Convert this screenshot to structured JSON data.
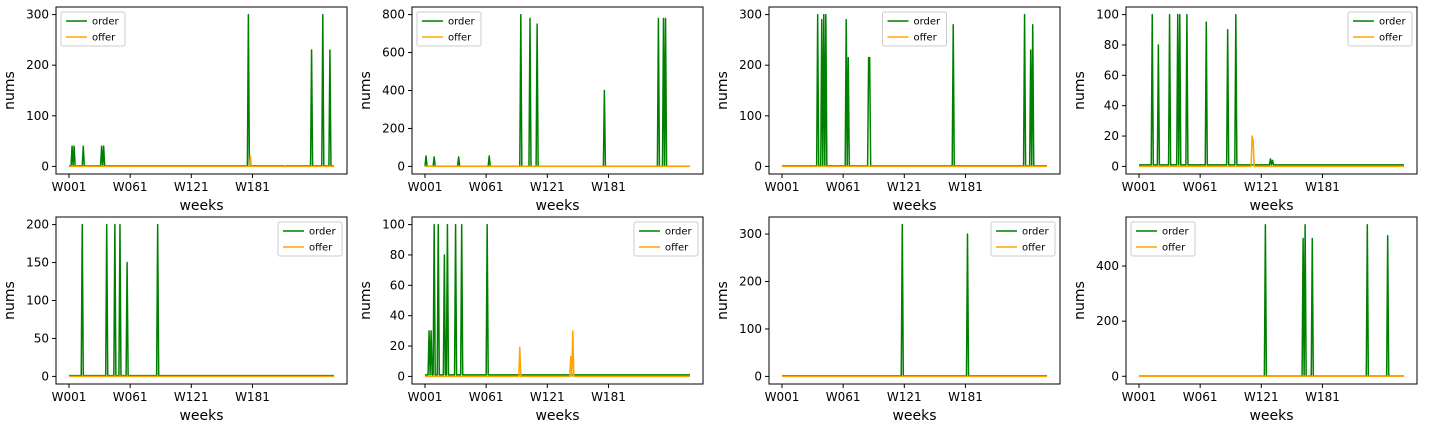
{
  "colors": {
    "order": "#008000",
    "offer": "#FFA500"
  },
  "chart_data": [
    {
      "type": "line",
      "title": "",
      "xlabel": "weeks",
      "ylabel": "nums",
      "x_ticks": [
        "W001",
        "W061",
        "W121",
        "W181"
      ],
      "y_ticks": [
        0,
        100,
        200,
        300
      ],
      "ylim": [
        -15,
        315
      ],
      "legend": "top-left",
      "grid": false,
      "series": [
        {
          "name": "order",
          "color": "#008000",
          "baseline": 1,
          "spikes": [
            [
              3,
              40
            ],
            [
              5,
              40
            ],
            [
              14,
              40
            ],
            [
              32,
              40
            ],
            [
              34,
              40
            ],
            [
              176,
              300
            ],
            [
              212,
              0
            ],
            [
              238,
              230
            ],
            [
              249,
              300
            ],
            [
              256,
              230
            ]
          ]
        },
        {
          "name": "offer",
          "color": "#FFA500",
          "baseline": 0,
          "spikes": [
            [
              178,
              20
            ]
          ]
        }
      ]
    },
    {
      "type": "line",
      "title": "",
      "xlabel": "weeks",
      "ylabel": "nums",
      "x_ticks": [
        "W001",
        "W061",
        "W121",
        "W181"
      ],
      "y_ticks": [
        0,
        200,
        400,
        600,
        800
      ],
      "ylim": [
        -40,
        840
      ],
      "legend": "top-left",
      "grid": false,
      "series": [
        {
          "name": "order",
          "color": "#008000",
          "baseline": 1,
          "spikes": [
            [
              1,
              55
            ],
            [
              9,
              50
            ],
            [
              33,
              50
            ],
            [
              63,
              55
            ],
            [
              94,
              800
            ],
            [
              103,
              780
            ],
            [
              110,
              750
            ],
            [
              176,
              400
            ],
            [
              229,
              780
            ],
            [
              234,
              780
            ],
            [
              236,
              780
            ]
          ]
        },
        {
          "name": "offer",
          "color": "#FFA500",
          "baseline": 0,
          "spikes": []
        }
      ]
    },
    {
      "type": "line",
      "title": "",
      "xlabel": "weeks",
      "ylabel": "nums",
      "x_ticks": [
        "W001",
        "W061",
        "W121",
        "W181"
      ],
      "y_ticks": [
        0,
        100,
        200,
        300
      ],
      "ylim": [
        -15,
        315
      ],
      "legend": "top-center",
      "grid": false,
      "series": [
        {
          "name": "order",
          "color": "#008000",
          "baseline": 1,
          "spikes": [
            [
              35,
              300
            ],
            [
              39,
              290
            ],
            [
              41,
              300
            ],
            [
              43,
              300
            ],
            [
              63,
              290
            ],
            [
              65,
              215
            ],
            [
              85,
              215
            ],
            [
              86,
              215
            ],
            [
              168,
              280
            ],
            [
              238,
              300
            ],
            [
              244,
              230
            ],
            [
              246,
              280
            ]
          ]
        },
        {
          "name": "offer",
          "color": "#FFA500",
          "baseline": 0,
          "spikes": []
        }
      ]
    },
    {
      "type": "line",
      "title": "",
      "xlabel": "weeks",
      "ylabel": "nums",
      "x_ticks": [
        "W001",
        "W061",
        "W121",
        "W181"
      ],
      "y_ticks": [
        0,
        20,
        40,
        60,
        80,
        100
      ],
      "ylim": [
        -5,
        105
      ],
      "legend": "top-right",
      "grid": false,
      "series": [
        {
          "name": "order",
          "color": "#008000",
          "baseline": 1,
          "spikes": [
            [
              13,
              100
            ],
            [
              19,
              80
            ],
            [
              30,
              100
            ],
            [
              38,
              100
            ],
            [
              40,
              100
            ],
            [
              47,
              100
            ],
            [
              66,
              95
            ],
            [
              87,
              90
            ],
            [
              95,
              100
            ],
            [
              129,
              5
            ],
            [
              131,
              4
            ]
          ]
        },
        {
          "name": "offer",
          "color": "#FFA500",
          "baseline": 0,
          "spikes": [
            [
              111,
              20
            ],
            [
              112,
              17
            ]
          ]
        }
      ]
    },
    {
      "type": "line",
      "title": "",
      "xlabel": "weeks",
      "ylabel": "nums",
      "x_ticks": [
        "W001",
        "W061",
        "W121",
        "W181"
      ],
      "y_ticks": [
        0,
        50,
        100,
        150,
        200
      ],
      "ylim": [
        -10,
        210
      ],
      "legend": "top-right",
      "grid": false,
      "series": [
        {
          "name": "order",
          "color": "#008000",
          "baseline": 1,
          "spikes": [
            [
              13,
              200
            ],
            [
              37,
              200
            ],
            [
              45,
              200
            ],
            [
              50,
              200
            ],
            [
              57,
              150
            ],
            [
              87,
              200
            ]
          ]
        },
        {
          "name": "offer",
          "color": "#FFA500",
          "baseline": 0,
          "spikes": []
        }
      ]
    },
    {
      "type": "line",
      "title": "",
      "xlabel": "weeks",
      "ylabel": "nums",
      "x_ticks": [
        "W001",
        "W061",
        "W121",
        "W181"
      ],
      "y_ticks": [
        0,
        20,
        40,
        60,
        80,
        100
      ],
      "ylim": [
        -5,
        105
      ],
      "legend": "top-right",
      "grid": false,
      "series": [
        {
          "name": "order",
          "color": "#008000",
          "baseline": 1,
          "spikes": [
            [
              4,
              30
            ],
            [
              6,
              30
            ],
            [
              9,
              100
            ],
            [
              13,
              100
            ],
            [
              19,
              80
            ],
            [
              22,
              100
            ],
            [
              30,
              100
            ],
            [
              36,
              100
            ],
            [
              61,
              100
            ]
          ]
        },
        {
          "name": "offer",
          "color": "#FFA500",
          "baseline": 0,
          "spikes": [
            [
              93,
              19
            ],
            [
              143,
              13
            ],
            [
              145,
              30
            ]
          ]
        }
      ]
    },
    {
      "type": "line",
      "title": "",
      "xlabel": "weeks",
      "ylabel": "nums",
      "x_ticks": [
        "W001",
        "W061",
        "W121",
        "W181"
      ],
      "y_ticks": [
        0,
        100,
        200,
        300
      ],
      "ylim": [
        -16,
        336
      ],
      "legend": "top-right",
      "grid": false,
      "series": [
        {
          "name": "order",
          "color": "#008000",
          "baseline": 1,
          "spikes": [
            [
              118,
              320
            ],
            [
              182,
              300
            ]
          ]
        },
        {
          "name": "offer",
          "color": "#FFA500",
          "baseline": 0,
          "spikes": []
        }
      ]
    },
    {
      "type": "line",
      "title": "",
      "xlabel": "weeks",
      "ylabel": "nums",
      "x_ticks": [
        "W001",
        "W061",
        "W121",
        "W181"
      ],
      "y_ticks": [
        0,
        200,
        400
      ],
      "ylim": [
        -28,
        578
      ],
      "legend": "top-left",
      "grid": false,
      "series": [
        {
          "name": "order",
          "color": "#008000",
          "baseline": 1,
          "spikes": [
            [
              124,
              550
            ],
            [
              161,
              500
            ],
            [
              163,
              550
            ],
            [
              170,
              500
            ],
            [
              224,
              550
            ],
            [
              244,
              510
            ]
          ]
        },
        {
          "name": "offer",
          "color": "#FFA500",
          "baseline": 0,
          "spikes": []
        }
      ]
    }
  ]
}
